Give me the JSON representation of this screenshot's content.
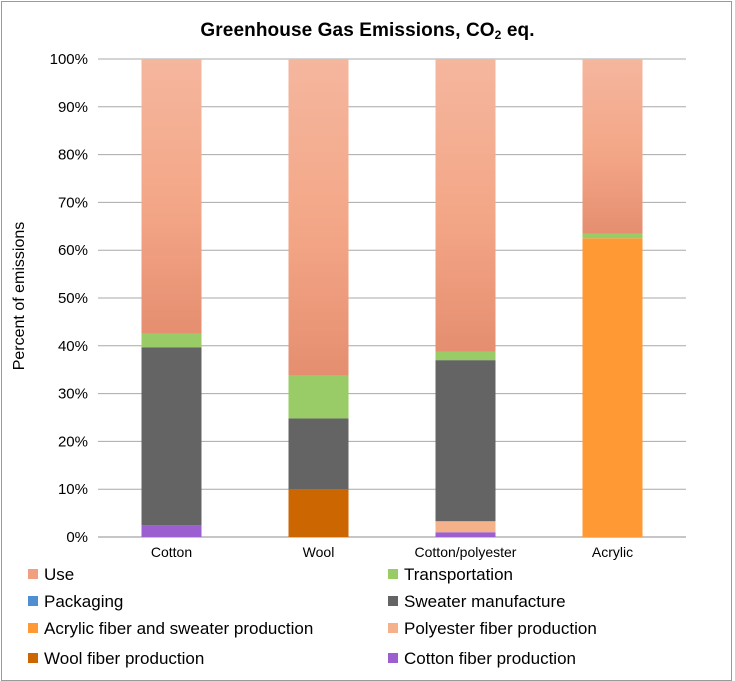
{
  "chart_data": {
    "type": "bar",
    "stacked": true,
    "title": "Greenhouse Gas Emissions, CO",
    "title_sub": "2",
    "title_suffix": " eq.",
    "xlabel": "",
    "ylabel": "Percent of emissions",
    "ylim": [
      0,
      100
    ],
    "yticks": [
      "0%",
      "10%",
      "20%",
      "30%",
      "40%",
      "50%",
      "60%",
      "70%",
      "80%",
      "90%",
      "100%"
    ],
    "grid": true,
    "legend_position": "bottom",
    "categories": [
      "Cotton",
      "Wool",
      "Cotton/polyester",
      "Acrylic"
    ],
    "series": [
      {
        "name": "Cotton fiber production",
        "color": "#9b5fd0",
        "values": [
          2.5,
          0,
          1,
          0
        ]
      },
      {
        "name": "Wool fiber production",
        "color": "#cc6600",
        "values": [
          0,
          10,
          0,
          0
        ]
      },
      {
        "name": "Polyester fiber production",
        "color": "#f5b28a",
        "values": [
          0,
          0,
          2.3,
          0
        ]
      },
      {
        "name": "Acrylic fiber and sweater production",
        "color": "#ff9933",
        "values": [
          0,
          0,
          0,
          62.5
        ]
      },
      {
        "name": "Sweater manufacture",
        "color": "#646464",
        "values": [
          37.2,
          14.8,
          33.7,
          0
        ]
      },
      {
        "name": "Packaging",
        "color": "#4f8ed0",
        "values": [
          0,
          0,
          0,
          0
        ]
      },
      {
        "name": "Transportation",
        "color": "#99cc66",
        "values": [
          2.8,
          9,
          1.8,
          1
        ]
      },
      {
        "name": "Use",
        "color": "#f0a080",
        "values": [
          57.5,
          66.2,
          61.2,
          36.5
        ]
      }
    ]
  },
  "legend": [
    {
      "label": "Use",
      "color": "#f0a080"
    },
    {
      "label": "Transportation",
      "color": "#99cc66"
    },
    {
      "label": "Packaging",
      "color": "#4f8ed0"
    },
    {
      "label": "Sweater manufacture",
      "color": "#646464"
    },
    {
      "label": "Acrylic fiber and sweater production",
      "color": "#ff9933"
    },
    {
      "label": "Polyester fiber production",
      "color": "#f5b28a"
    },
    {
      "label": "Wool fiber production",
      "color": "#cc6600"
    },
    {
      "label": "Cotton fiber production",
      "color": "#9b5fd0"
    }
  ]
}
